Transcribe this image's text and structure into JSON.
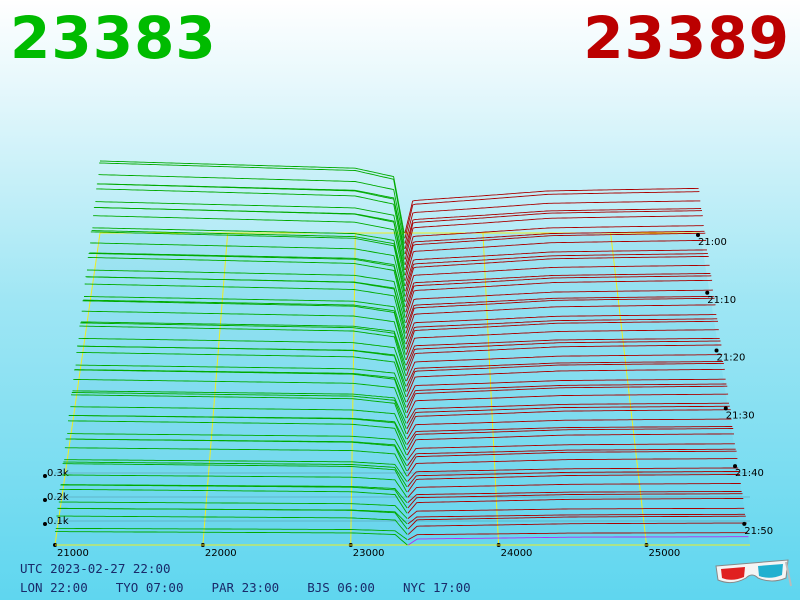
{
  "header": {
    "bid_price": "23383",
    "ask_price": "23389",
    "bid_color": "#00bb00",
    "ask_color": "#bb0000"
  },
  "chart_data": {
    "type": "3d-depth",
    "bid_price": 23383,
    "ask_price": 23389,
    "x_ticks": [
      "21000",
      "22000",
      "23000",
      "24000",
      "25000"
    ],
    "x_range": [
      21000,
      25700
    ],
    "z_ticks": [
      "0.1k",
      "0.2k",
      "0.3k"
    ],
    "z_range": [
      0,
      300
    ],
    "time_ticks": [
      "21:00",
      "21:10",
      "21:20",
      "21:30",
      "21:40",
      "21:50"
    ],
    "time_range": [
      "21:00",
      "21:54"
    ],
    "bid_color": "#00aa00",
    "ask_color": "#aa0000",
    "latest_ask_color": "#b030f0",
    "axis_color": "#eeee22",
    "bid_depth_profile": [
      [
        21000,
        300
      ],
      [
        22000,
        285
      ],
      [
        23000,
        270
      ],
      [
        23300,
        235
      ],
      [
        23383,
        0
      ]
    ],
    "ask_depth_profile": [
      [
        23389,
        0
      ],
      [
        23450,
        135
      ],
      [
        24000,
        155
      ],
      [
        24500,
        175
      ],
      [
        25000,
        180
      ],
      [
        25700,
        186
      ]
    ]
  },
  "footer": {
    "utc_line": "UTC 2023-02-27 22:00",
    "zones": [
      "LON 22:00",
      "TYO 07:00",
      "PAR 23:00",
      "BJS 06:00",
      "NYC 17:00"
    ]
  },
  "icons": {
    "glasses": "3d-glasses-icon"
  }
}
